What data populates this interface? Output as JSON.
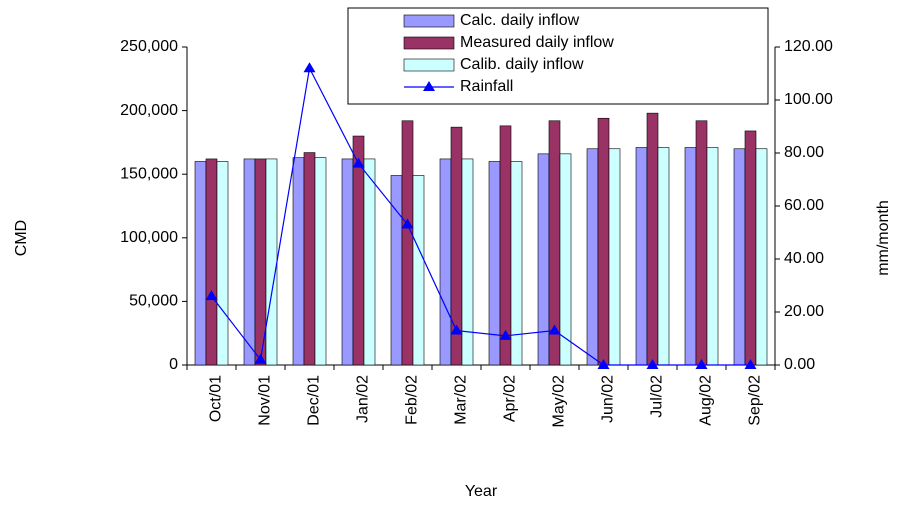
{
  "chart_data": {
    "type": "bar",
    "x_label": "Year",
    "y_label": "CMD",
    "y2_label": "mm/month",
    "categories": [
      "Oct/01",
      "Nov/01",
      "Dec/01",
      "Jan/02",
      "Feb/02",
      "Mar/02",
      "Apr/02",
      "May/02",
      "Jun/02",
      "Jul/02",
      "Aug/02",
      "Sep/02"
    ],
    "series": [
      {
        "name": "Calc. daily inflow",
        "type": "bar",
        "color": "#9999ff",
        "values": [
          160000,
          162000,
          163000,
          162000,
          149000,
          162000,
          160000,
          166000,
          170000,
          171000,
          171000,
          170000
        ]
      },
      {
        "name": "Measured daily inflow",
        "type": "bar",
        "color": "#993366",
        "values": [
          162000,
          162000,
          167000,
          180000,
          192000,
          187000,
          188000,
          192000,
          194000,
          198000,
          192000,
          184000
        ]
      },
      {
        "name": "Calib. daily inflow",
        "type": "bar",
        "color": "#ccffff",
        "values": [
          160000,
          162000,
          163000,
          162000,
          149000,
          162000,
          160000,
          166000,
          170000,
          171000,
          171000,
          170000
        ]
      },
      {
        "name": "Rainfall",
        "type": "line",
        "axis": "y2",
        "color": "#0000ff",
        "values": [
          26,
          2,
          112,
          76,
          53,
          13,
          11,
          13,
          0,
          0,
          0,
          0
        ]
      }
    ],
    "ylim": [
      0,
      250000
    ],
    "yticks": [
      0,
      {
        "value": 50000,
        "label": "50,000"
      },
      {
        "value": 100000,
        "label": "100,000"
      },
      {
        "value": 150000,
        "label": "150,000"
      },
      {
        "value": 200000,
        "label": "200,000"
      },
      {
        "value": 250000,
        "label": "250,000"
      }
    ],
    "y2lim": [
      0,
      120
    ],
    "y2ticks": [
      {
        "value": 0,
        "label": "0.00"
      },
      {
        "value": 20,
        "label": "20.00"
      },
      {
        "value": 40,
        "label": "40.00"
      },
      {
        "value": 60,
        "label": "60.00"
      },
      {
        "value": 80,
        "label": "80.00"
      },
      {
        "value": 100,
        "label": "100.00"
      },
      {
        "value": 120,
        "label": "120.00"
      }
    ],
    "legend": "top-right"
  }
}
